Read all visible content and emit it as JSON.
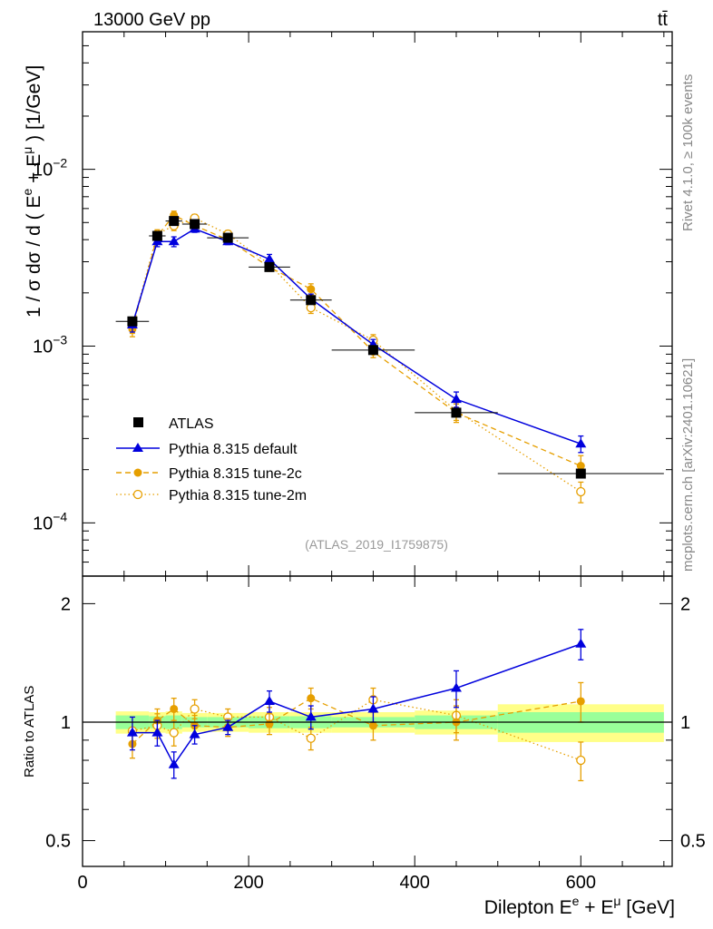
{
  "header": {
    "left": "13000 GeV pp",
    "right": "tt̄"
  },
  "side_labels": {
    "rivet": "Rivet 4.1.0, ≥ 100k events",
    "mcplots": "mcplots.cern.ch [arXiv:2401.10621]"
  },
  "watermark": "(ATLAS_2019_I1759875)",
  "colors": {
    "data": "#000000",
    "default": "#0000dd",
    "tune2c": "#e69f00",
    "tune2m": "#e69f00",
    "band_inner": "#99ff99",
    "band_outer": "#ffff88"
  },
  "chart_data": [
    {
      "type": "line",
      "panel": "main",
      "ylabel": "1 / σ dσ / d ( E^e + E^μ ) [1/GeV]",
      "ylabel_parts": {
        "pre": "1 / σ dσ / d ( E",
        "sup1": "e",
        "mid": " + E",
        "sup2": "μ",
        "post": " ) [1/GeV]"
      },
      "yscale": "log",
      "xlim": [
        0,
        710
      ],
      "ylim": [
        5e-05,
        0.06
      ],
      "yticks": [
        {
          "value": 0.01,
          "base": "10",
          "exp": "−2"
        },
        {
          "value": 0.001,
          "base": "10",
          "exp": "−3"
        },
        {
          "value": 0.0001,
          "base": "10",
          "exp": "−4"
        }
      ],
      "legend_position": "lower-left",
      "series": [
        {
          "name": "ATLAS",
          "style": "data",
          "x": [
            60,
            90,
            110,
            135,
            175,
            225,
            275,
            350,
            450,
            600
          ],
          "xerr": [
            20,
            10,
            10,
            15,
            25,
            25,
            25,
            50,
            50,
            100
          ],
          "y": [
            0.00138,
            0.0042,
            0.0051,
            0.0049,
            0.0041,
            0.0028,
            0.00182,
            0.00095,
            0.00042,
            0.00019
          ],
          "yerr": [
            5e-05,
            0.00015,
            0.0002,
            0.00015,
            0.00012,
            0.0001,
            6e-05,
            3e-05,
            1.5e-05,
            8e-06
          ]
        },
        {
          "name": "Pythia 8.315 default",
          "style": "default",
          "x": [
            60,
            90,
            110,
            135,
            175,
            225,
            275,
            350,
            450,
            600
          ],
          "y": [
            0.00132,
            0.0039,
            0.0039,
            0.0046,
            0.0039,
            0.0031,
            0.00185,
            0.00102,
            0.0005,
            0.00028
          ],
          "yerr": [
            0.00012,
            0.00025,
            0.00025,
            0.0002,
            0.00015,
            0.0002,
            0.00012,
            7e-05,
            5e-05,
            3e-05
          ]
        },
        {
          "name": "Pythia 8.315 tune-2c",
          "style": "tune2c",
          "x": [
            60,
            90,
            110,
            135,
            175,
            225,
            275,
            350,
            450,
            600
          ],
          "y": [
            0.00125,
            0.0042,
            0.0055,
            0.0048,
            0.004,
            0.0028,
            0.0021,
            0.00093,
            0.00042,
            0.00021
          ],
          "yerr": [
            0.00012,
            0.00025,
            0.0003,
            0.00025,
            0.0002,
            0.00015,
            0.00015,
            7e-05,
            5e-05,
            3e-05
          ]
        },
        {
          "name": "Pythia 8.315 tune-2m",
          "style": "tune2m",
          "x": [
            60,
            90,
            110,
            135,
            175,
            225,
            275,
            350,
            450,
            600
          ],
          "y": [
            0.0013,
            0.0043,
            0.0048,
            0.0053,
            0.0043,
            0.0029,
            0.00165,
            0.00108,
            0.00043,
            0.00015
          ],
          "yerr": [
            0.00012,
            0.00025,
            0.0003,
            0.00025,
            0.0002,
            0.00015,
            0.00012,
            8e-05,
            5e-05,
            2e-05
          ]
        }
      ]
    },
    {
      "type": "line",
      "panel": "ratio",
      "xlabel": "Dilepton E^e + E^μ [GeV]",
      "xlabel_parts": {
        "pre": "Dilepton E",
        "sup1": "e",
        "mid": " + E",
        "sup2": "μ",
        "post": " [GeV]"
      },
      "ylabel": "Ratio to ATLAS",
      "yscale": "log",
      "xlim": [
        0,
        710
      ],
      "ylim": [
        0.43,
        2.35
      ],
      "xticks": [
        {
          "value": 0,
          "label": "0"
        },
        {
          "value": 200,
          "label": "200"
        },
        {
          "value": 400,
          "label": "400"
        },
        {
          "value": 600,
          "label": "600"
        }
      ],
      "yticks": [
        {
          "value": 0.5,
          "label": "0.5"
        },
        {
          "value": 1,
          "label": "1"
        },
        {
          "value": 2,
          "label": "2"
        }
      ],
      "bands": {
        "x_lo": [
          40,
          80,
          100,
          120,
          150,
          200,
          250,
          300,
          400,
          500
        ],
        "x_hi": [
          80,
          100,
          120,
          150,
          200,
          250,
          300,
          400,
          500,
          700
        ],
        "inner": [
          0.04,
          0.035,
          0.04,
          0.03,
          0.03,
          0.035,
          0.035,
          0.03,
          0.04,
          0.06
        ],
        "outer": [
          0.065,
          0.06,
          0.065,
          0.055,
          0.055,
          0.06,
          0.06,
          0.06,
          0.07,
          0.11
        ]
      },
      "series": [
        {
          "name": "Pythia 8.315 default",
          "style": "default",
          "x": [
            60,
            90,
            110,
            135,
            175,
            225,
            275,
            350,
            450,
            600
          ],
          "y": [
            0.94,
            0.94,
            0.78,
            0.93,
            0.97,
            1.13,
            1.03,
            1.08,
            1.22,
            1.58
          ],
          "yerr": [
            0.09,
            0.07,
            0.06,
            0.05,
            0.04,
            0.07,
            0.07,
            0.08,
            0.13,
            0.14
          ]
        },
        {
          "name": "Pythia 8.315 tune-2c",
          "style": "tune2c",
          "x": [
            60,
            90,
            110,
            135,
            175,
            225,
            275,
            350,
            450,
            600
          ],
          "y": [
            0.88,
            1.01,
            1.08,
            0.98,
            0.97,
            0.99,
            1.15,
            0.98,
            1.0,
            1.13
          ],
          "yerr": [
            0.07,
            0.07,
            0.07,
            0.06,
            0.05,
            0.06,
            0.07,
            0.08,
            0.1,
            0.13
          ]
        },
        {
          "name": "Pythia 8.315 tune-2m",
          "style": "tune2m",
          "x": [
            60,
            90,
            110,
            135,
            175,
            225,
            275,
            350,
            450,
            600
          ],
          "y": [
            0.95,
            0.98,
            0.94,
            1.08,
            1.03,
            1.03,
            0.91,
            1.14,
            1.04,
            0.8
          ],
          "yerr": [
            0.08,
            0.07,
            0.07,
            0.06,
            0.05,
            0.06,
            0.06,
            0.08,
            0.1,
            0.09
          ]
        }
      ]
    }
  ]
}
